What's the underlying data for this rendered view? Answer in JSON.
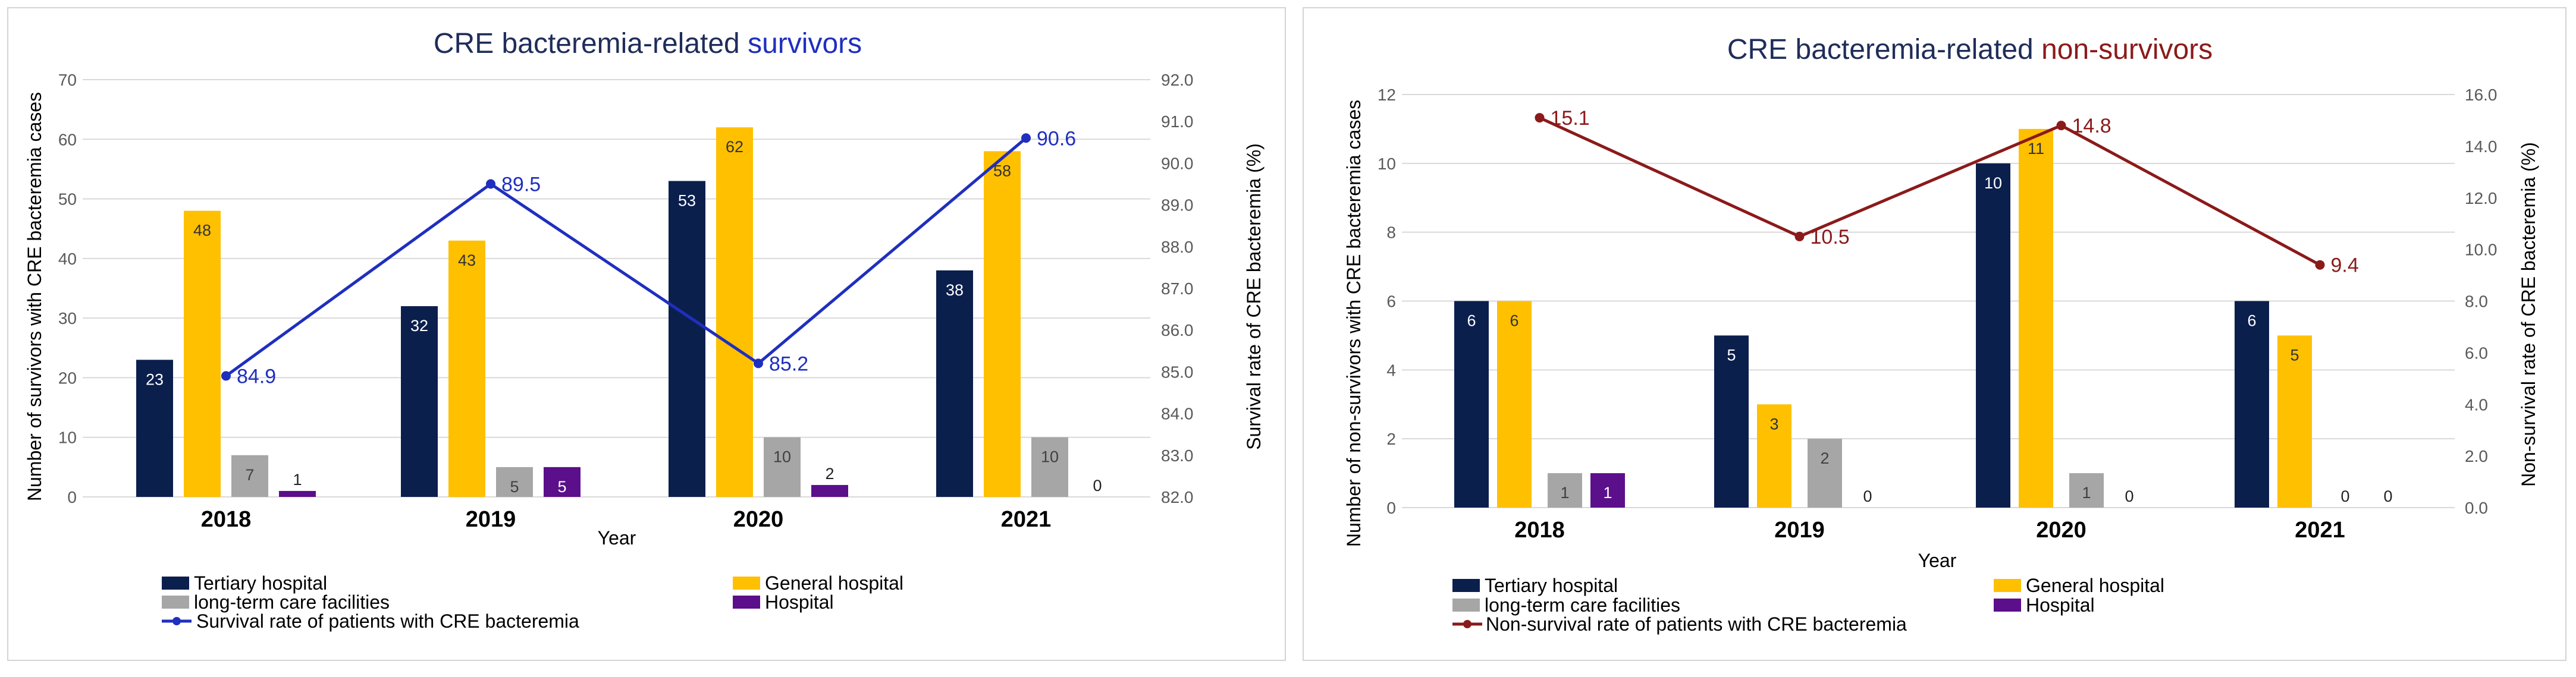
{
  "colors": {
    "tertiary": "#0b1f4d",
    "general": "#ffc000",
    "longterm": "#a6a6a6",
    "hospital": "#5b0f8b",
    "survival_line": "#1f2fbf",
    "nonsurvival_line": "#8b1a1a",
    "title_text": "#1f2d5a",
    "grid": "#d9d9d9"
  },
  "chart_data": [
    {
      "type": "bar",
      "title": "CRE bacteremia-related survivors",
      "title_plain": "CRE bacteremia-related ",
      "title_highlight": "survivors",
      "xlabel": "Year",
      "ylabel": "Number of survivors with CRE bacteremia cases",
      "y2label": "Survival rate of CRE bacteremia (%)",
      "categories": [
        "2018",
        "2019",
        "2020",
        "2021"
      ],
      "ylim": [
        0,
        70
      ],
      "yticks": [
        "0",
        "10",
        "20",
        "30",
        "40",
        "50",
        "60",
        "70"
      ],
      "y2lim": [
        82.0,
        92.0
      ],
      "y2ticks": [
        "82.0",
        "83.0",
        "84.0",
        "85.0",
        "86.0",
        "87.0",
        "88.0",
        "89.0",
        "90.0",
        "91.0",
        "92.0"
      ],
      "series": [
        {
          "name": "Tertiary hospital",
          "key": "tertiary",
          "values": [
            23,
            32,
            53,
            38
          ]
        },
        {
          "name": "General  hospital",
          "key": "general",
          "values": [
            48,
            43,
            62,
            58
          ]
        },
        {
          "name": "long-term care facilities",
          "key": "longterm",
          "values": [
            7,
            5,
            10,
            10
          ]
        },
        {
          "name": "Hospital",
          "key": "hospital",
          "values": [
            1,
            5,
            2,
            0
          ]
        }
      ],
      "line": {
        "name": "Survival rate of patients with CRE bacteremia",
        "key": "survival_line",
        "values": [
          84.9,
          89.5,
          85.2,
          90.6
        ],
        "labels": [
          "84.9",
          "89.5",
          "85.2",
          "90.6"
        ]
      }
    },
    {
      "type": "bar",
      "title": "CRE bacteremia-related non-survivors",
      "title_plain": "CRE bacteremia-related ",
      "title_highlight": "non-survivors",
      "xlabel": "Year",
      "ylabel": "Number of non-survivors with CRE bacteremia cases",
      "y2label": "Non-survival rate of CRE bacteremia (%)",
      "categories": [
        "2018",
        "2019",
        "2020",
        "2021"
      ],
      "ylim": [
        0,
        12
      ],
      "yticks": [
        "0",
        "2",
        "4",
        "6",
        "8",
        "10",
        "12"
      ],
      "y2lim": [
        0.0,
        16.0
      ],
      "y2ticks": [
        "0.0",
        "2.0",
        "4.0",
        "6.0",
        "8.0",
        "10.0",
        "12.0",
        "14.0",
        "16.0"
      ],
      "series": [
        {
          "name": "Tertiary hospital",
          "key": "tertiary",
          "values": [
            6,
            5,
            10,
            6
          ]
        },
        {
          "name": "General  hospital",
          "key": "general",
          "values": [
            6,
            3,
            11,
            5
          ]
        },
        {
          "name": "long-term care facilities",
          "key": "longterm",
          "values": [
            1,
            2,
            1,
            0
          ]
        },
        {
          "name": "Hospital",
          "key": "hospital",
          "values": [
            1,
            0,
            0,
            0
          ]
        }
      ],
      "line": {
        "name": "Non-survival rate of patients with CRE bacteremia",
        "key": "nonsurvival_line",
        "values": [
          15.1,
          10.5,
          14.8,
          9.4
        ],
        "labels": [
          "15.1",
          "10.5",
          "14.8",
          "9.4"
        ]
      }
    }
  ]
}
